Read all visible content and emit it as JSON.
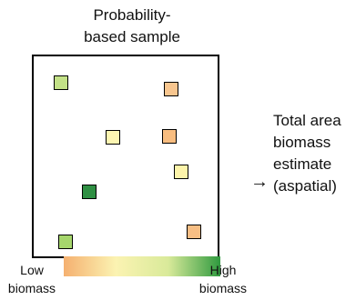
{
  "title": {
    "line1": "Probability-",
    "line2": "based sample"
  },
  "result": {
    "line1": "Total area",
    "line2": "biomass",
    "line3": "estimate",
    "line4": "(aspatial)"
  },
  "arrow_glyph": "→",
  "legend": {
    "low_line1": "Low",
    "low_line2": "biomass",
    "high_line1": "High",
    "high_line2": "biomass",
    "gradient_colors": [
      "#f5b070",
      "#fbf3b2",
      "#d9ea9a",
      "#2f9a3f"
    ]
  },
  "samples": [
    {
      "biomass_level": "high-medium",
      "color": "#c3e187"
    },
    {
      "biomass_level": "low",
      "color": "#f8c68f"
    },
    {
      "biomass_level": "medium",
      "color": "#fdf6b2"
    },
    {
      "biomass_level": "low",
      "color": "#f8bd80"
    },
    {
      "biomass_level": "medium",
      "color": "#fdf4aa"
    },
    {
      "biomass_level": "high",
      "color": "#2f8f43"
    },
    {
      "biomass_level": "low",
      "color": "#f7be84"
    },
    {
      "biomass_level": "high-medium",
      "color": "#a6d66c"
    }
  ]
}
